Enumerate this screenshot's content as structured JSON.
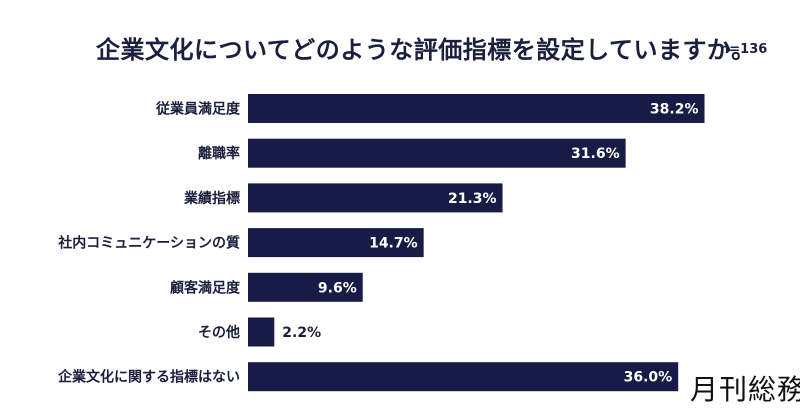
{
  "header": {
    "title": "企業文化についてどのような評価指標を設定していますか。",
    "sample_size": "n=136"
  },
  "brand": {
    "name": "月刊総務"
  },
  "colors": {
    "bar": "#181b45",
    "text": "#1a1f3d",
    "bar_label": "#ffffff"
  },
  "chart_data": {
    "type": "bar",
    "orientation": "horizontal",
    "title": "企業文化についてどのような評価指標を設定していますか。",
    "categories": [
      "従業員満足度",
      "離職率",
      "業績指標",
      "社内コミュニケーションの質",
      "顧客満足度",
      "その他",
      "企業文化に関する指標はない"
    ],
    "values": [
      38.2,
      31.6,
      21.3,
      14.7,
      9.6,
      2.2,
      36.0
    ],
    "value_labels": [
      "38.2%",
      "31.6%",
      "21.3%",
      "14.7%",
      "9.6%",
      "2.2%",
      "36.0%"
    ],
    "unit": "%",
    "xlim": [
      0,
      40
    ],
    "grid": false,
    "legend": "none"
  }
}
